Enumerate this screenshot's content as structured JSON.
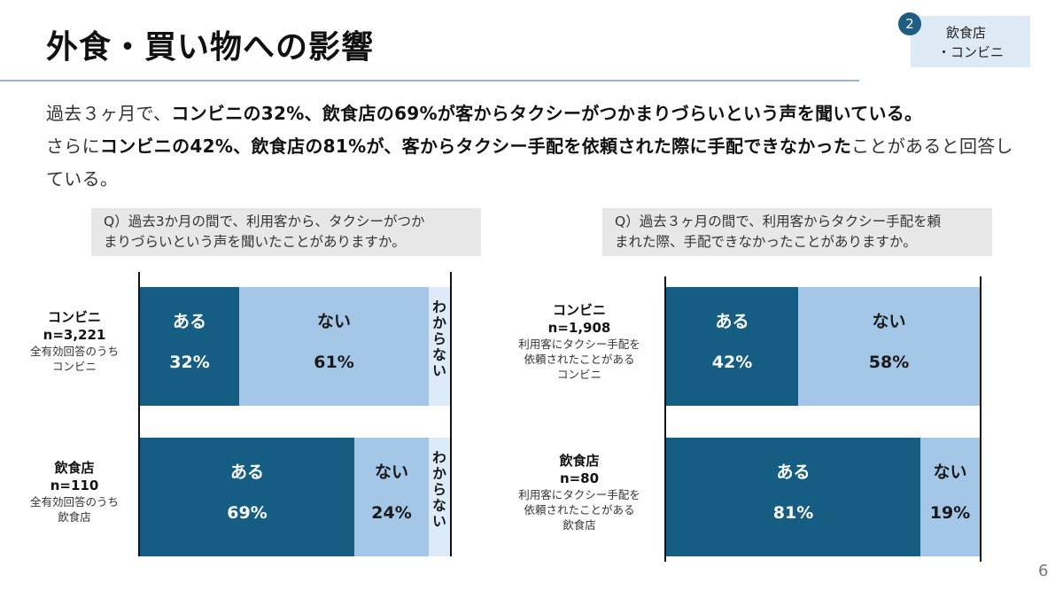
{
  "header": {
    "title": "外食・買い物への影響",
    "tag_number": "2",
    "tag_line1": "飲食店",
    "tag_line2": "・コンビニ"
  },
  "lead": {
    "s1": "過去３ヶ月で、",
    "s2": "コンビニの32%、飲食店の69%が客からタクシーがつかまりづらいという声を聞いている。",
    "s3": "さらに",
    "s4": "コンビニの42%、飲食店の81%が、客からタクシー手配を依頼された際に手配できなかった",
    "s5": "ことがあると回答している。"
  },
  "chart_data": [
    {
      "type": "bar",
      "stacked": true,
      "orientation": "horizontal",
      "question_line1": "Q）過去3か月の間で、利用客から、タクシーがつか",
      "question_line2": "まりづらいという声を聞いたことがありますか。",
      "rows": [
        {
          "name": "コンビニ",
          "n": "n=3,221",
          "sub_line1": "全有効回答のうち",
          "sub_line2": "コンビニ",
          "sub_line3": "",
          "segments": [
            {
              "label": "ある",
              "value": 32,
              "pct_label": "32%"
            },
            {
              "label": "ない",
              "value": 61,
              "pct_label": "61%"
            },
            {
              "label": "わからない",
              "value": 7,
              "pct_label": ""
            }
          ]
        },
        {
          "name": "飲食店",
          "n": "n=110",
          "sub_line1": "全有効回答のうち",
          "sub_line2": "飲食店",
          "sub_line3": "",
          "segments": [
            {
              "label": "ある",
              "value": 69,
              "pct_label": "69%"
            },
            {
              "label": "ない",
              "value": 24,
              "pct_label": "24%"
            },
            {
              "label": "わからない",
              "value": 7,
              "pct_label": ""
            }
          ]
        }
      ]
    },
    {
      "type": "bar",
      "stacked": true,
      "orientation": "horizontal",
      "question_line1": "Q）過去３ヶ月の間で、利用客からタクシー手配を頼",
      "question_line2": "まれた際、手配できなかったことがありますか。",
      "rows": [
        {
          "name": "コンビニ",
          "n": "n=1,908",
          "sub_line1": "利用客にタクシー手配を",
          "sub_line2": "依頼されたことがある",
          "sub_line3": "コンビニ",
          "segments": [
            {
              "label": "ある",
              "value": 42,
              "pct_label": "42%"
            },
            {
              "label": "ない",
              "value": 58,
              "pct_label": "58%"
            }
          ]
        },
        {
          "name": "飲食店",
          "n": "n=80",
          "sub_line1": "利用客にタクシー手配を",
          "sub_line2": "依頼されたことがある",
          "sub_line3": "飲食店",
          "segments": [
            {
              "label": "ある",
              "value": 81,
              "pct_label": "81%"
            },
            {
              "label": "ない",
              "value": 19,
              "pct_label": "19%"
            }
          ]
        }
      ]
    }
  ],
  "footer": {
    "page_number": "6"
  }
}
